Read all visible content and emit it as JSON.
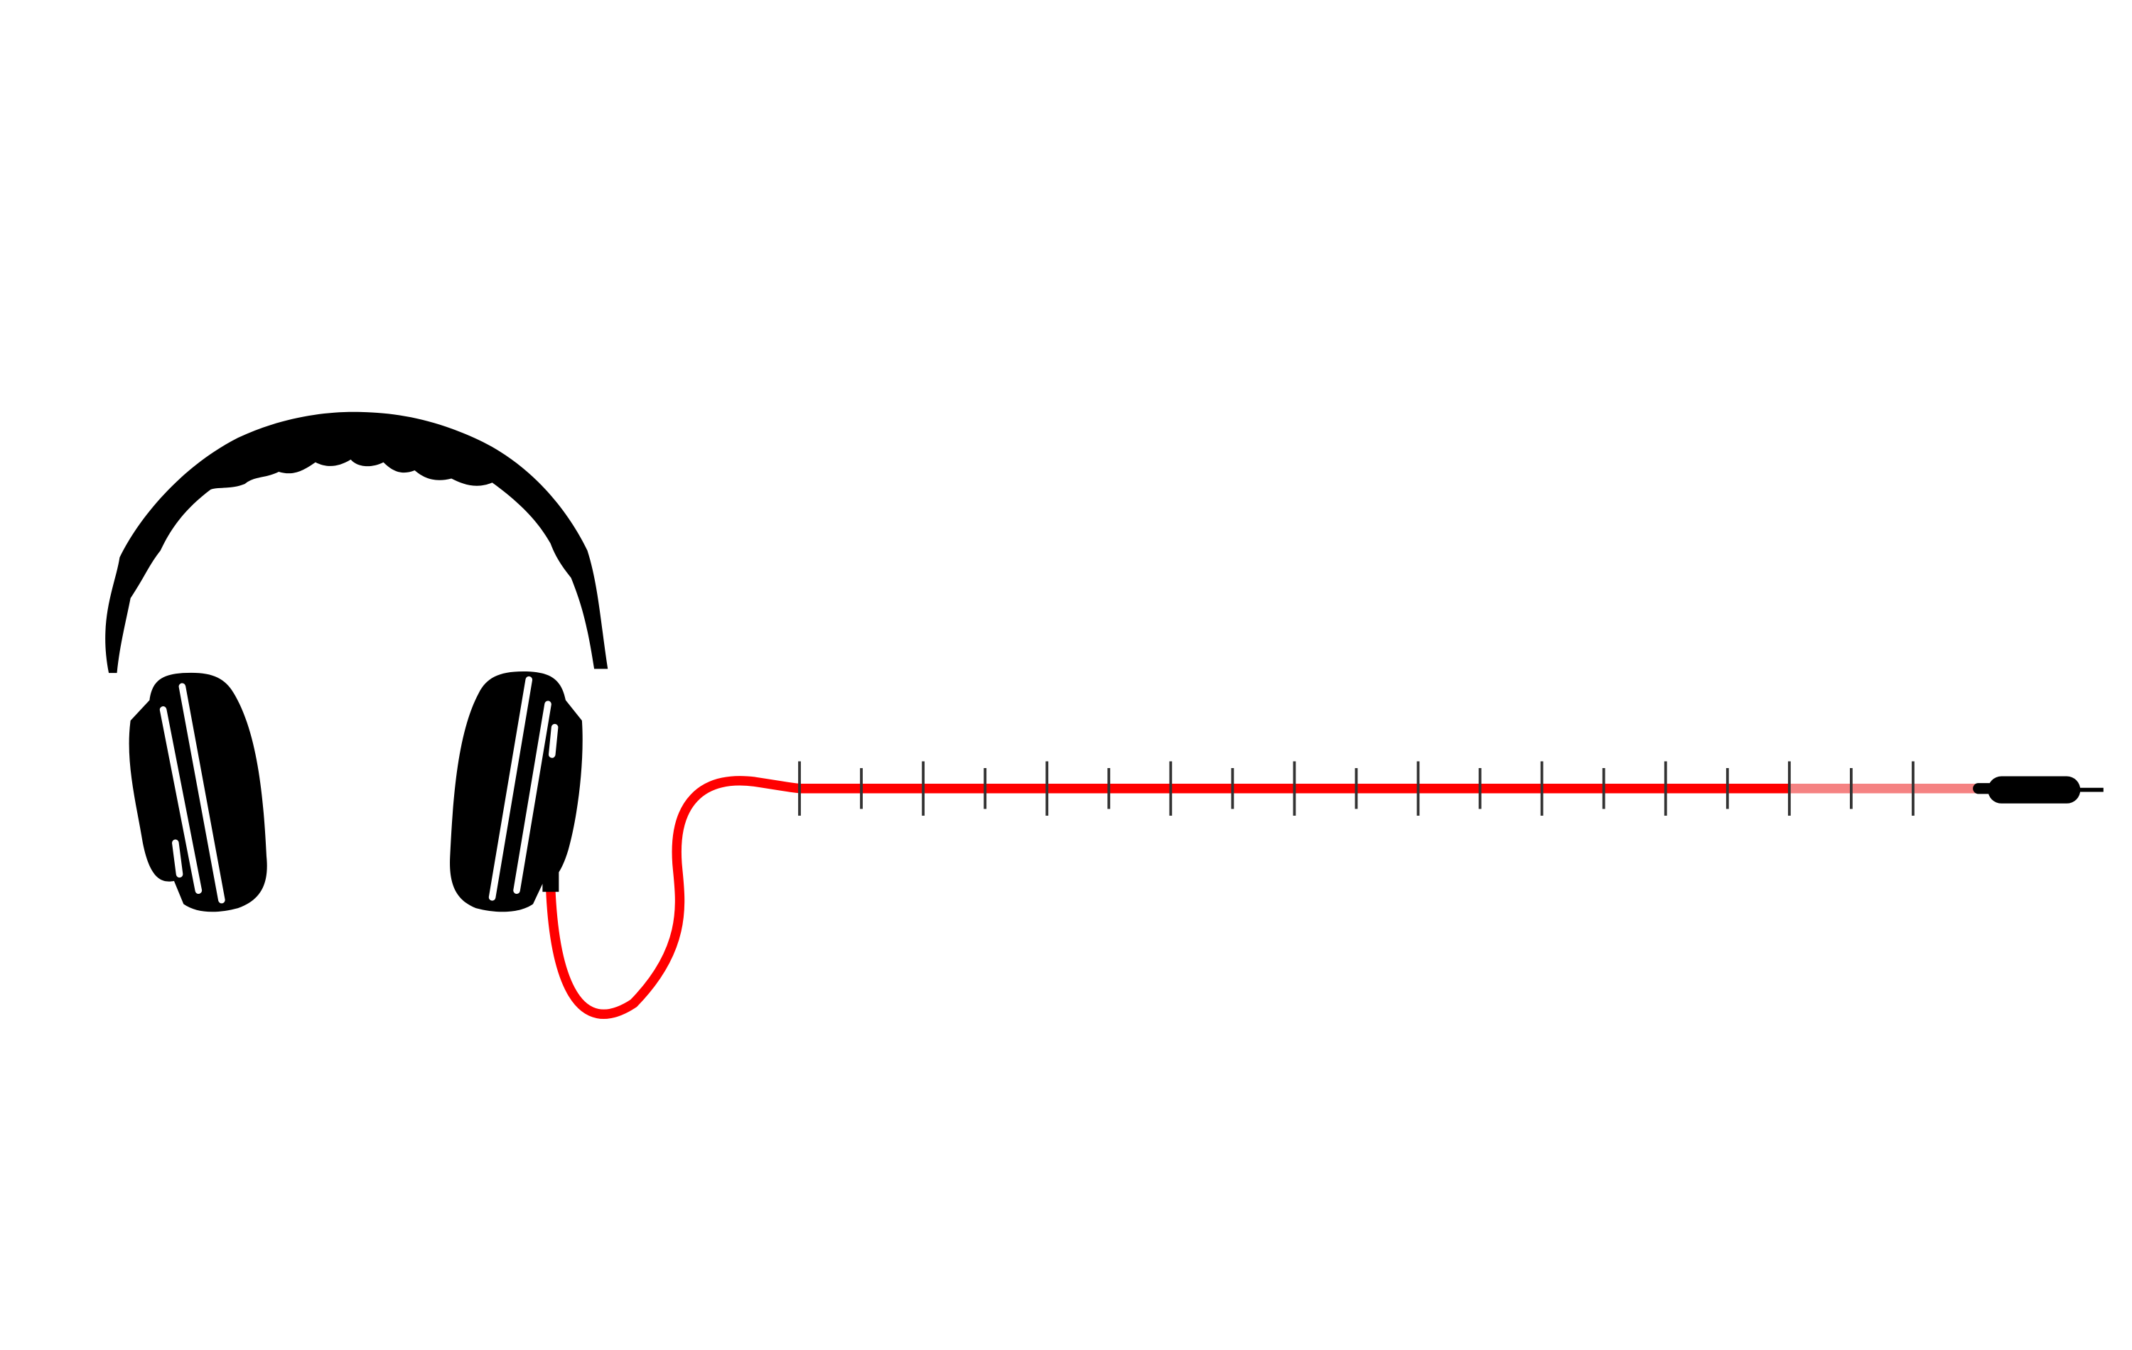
{
  "slider": {
    "range": [
      0,
      18
    ],
    "ticks": [
      0,
      1,
      2,
      3,
      4,
      5,
      6,
      7,
      8,
      9,
      10,
      11,
      12,
      13,
      14,
      15,
      16,
      17,
      18
    ],
    "value": 16
  }
}
